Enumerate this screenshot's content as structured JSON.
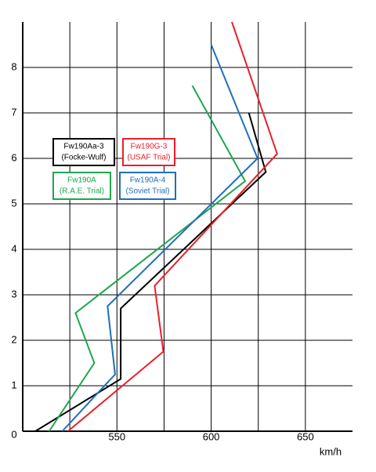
{
  "chart_data": {
    "type": "line",
    "xlabel": "km/h",
    "xlim": [
      500,
      675
    ],
    "xticks": [
      550,
      600,
      650
    ],
    "xminor": [
      525,
      575,
      625
    ],
    "ylim": [
      0,
      9
    ],
    "yticks": [
      0,
      1,
      2,
      3,
      4,
      5,
      6,
      7,
      8
    ],
    "grid": true,
    "series": [
      {
        "name": "Fw190Aa-3",
        "note": "(Focke-Wulf)",
        "color": "#000000",
        "x": [
          506.7,
          552,
          552,
          629,
          620
        ],
        "values": [
          0,
          1.15,
          2.7,
          5.7,
          7.0
        ]
      },
      {
        "name": "Fw190G-3",
        "note": "(USAF Trial)",
        "color": "#e8202a",
        "x": [
          524,
          574.6,
          570,
          635,
          611
        ],
        "values": [
          0,
          1.75,
          3.2,
          6.1,
          9.0
        ]
      },
      {
        "name": "Fw190A",
        "note": "(R.A.E. Trial)",
        "color": "#1ea64f",
        "x": [
          514,
          538,
          528,
          618,
          590
        ],
        "values": [
          0,
          1.5,
          2.6,
          5.5,
          7.6
        ]
      },
      {
        "name": "Fw190A-4",
        "note": "(Soviet Trial)",
        "color": "#1f6fb8",
        "x": [
          521,
          549,
          545,
          624.6,
          600
        ],
        "values": [
          0,
          1.25,
          2.75,
          6.0,
          8.5
        ]
      }
    ]
  }
}
